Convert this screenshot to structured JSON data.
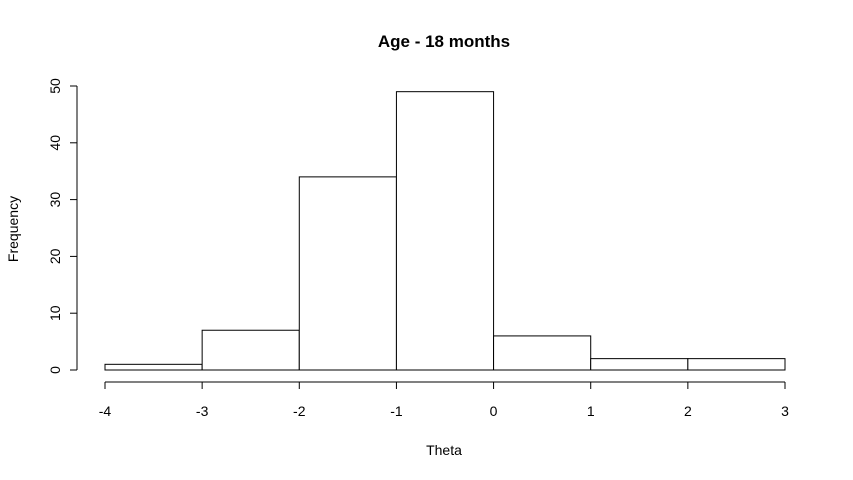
{
  "chart_data": {
    "type": "bar",
    "title": "Age - 18 months",
    "xlabel": "Theta",
    "ylabel": "Frequency",
    "bins": [
      {
        "from": -4,
        "to": -3,
        "count": 1
      },
      {
        "from": -3,
        "to": -2,
        "count": 7
      },
      {
        "from": -2,
        "to": -1,
        "count": 34
      },
      {
        "from": -1,
        "to": 0,
        "count": 49
      },
      {
        "from": 0,
        "to": 1,
        "count": 6
      },
      {
        "from": 1,
        "to": 2,
        "count": 2
      },
      {
        "from": 2,
        "to": 3,
        "count": 2
      }
    ],
    "xticks": [
      "-4",
      "-3",
      "-2",
      "-1",
      "0",
      "1",
      "2",
      "3"
    ],
    "yticks": [
      "0",
      "10",
      "20",
      "30",
      "40",
      "50"
    ],
    "xlim": [
      -4,
      3
    ],
    "ylim": [
      0,
      50
    ],
    "grid": false,
    "colors": {
      "bar_fill": "#ffffff",
      "bar_stroke": "#000000"
    }
  }
}
